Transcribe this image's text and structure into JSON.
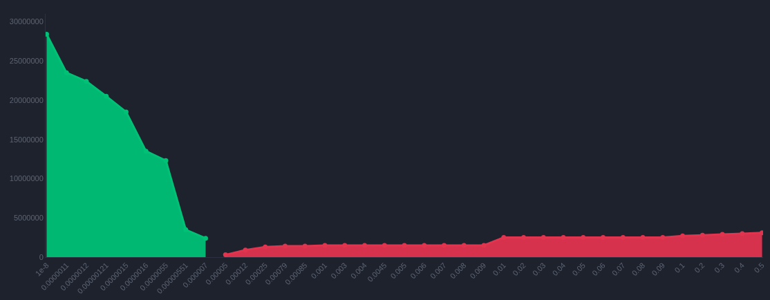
{
  "chart_data": {
    "type": "area",
    "categories": [
      "1e-8",
      "0.0000011",
      "0.0000012",
      "0.00000121",
      "0.0000015",
      "0.0000016",
      "0.0000055",
      "0.00000551",
      "0.000007",
      "0.00005",
      "0.00012",
      "0.00025",
      "0.00079",
      "0.00085",
      "0.001",
      "0.003",
      "0.004",
      "0.0045",
      "0.005",
      "0.006",
      "0.007",
      "0.008",
      "0.009",
      "0.01",
      "0.02",
      "0.03",
      "0.04",
      "0.05",
      "0.06",
      "0.07",
      "0.08",
      "0.09",
      "0.1",
      "0.2",
      "0.3",
      "0.4",
      "0.5"
    ],
    "series": [
      {
        "color": "#00c176",
        "values": [
          28400000,
          23500000,
          22400000,
          20500000,
          18500000,
          13500000,
          12300000,
          3500000,
          2400000,
          null,
          null,
          null,
          null,
          null,
          null,
          null,
          null,
          null,
          null,
          null,
          null,
          null,
          null,
          null,
          null,
          null,
          null,
          null,
          null,
          null,
          null,
          null,
          null,
          null,
          null,
          null,
          null
        ]
      },
      {
        "color": "#e0344f",
        "values": [
          null,
          null,
          null,
          null,
          null,
          null,
          null,
          null,
          null,
          300000,
          900000,
          1300000,
          1400000,
          1400000,
          1500000,
          1500000,
          1500000,
          1500000,
          1500000,
          1500000,
          1500000,
          1500000,
          1500000,
          2500000,
          2500000,
          2500000,
          2500000,
          2500000,
          2500000,
          2500000,
          2500000,
          2500000,
          2700000,
          2800000,
          2900000,
          3000000,
          3100000
        ]
      }
    ],
    "ylim": [
      0,
      31000000
    ],
    "yticks": [
      0,
      5000000,
      10000000,
      15000000,
      20000000,
      25000000,
      30000000
    ],
    "grid": false,
    "marker": "circle",
    "line_style": "solid"
  }
}
